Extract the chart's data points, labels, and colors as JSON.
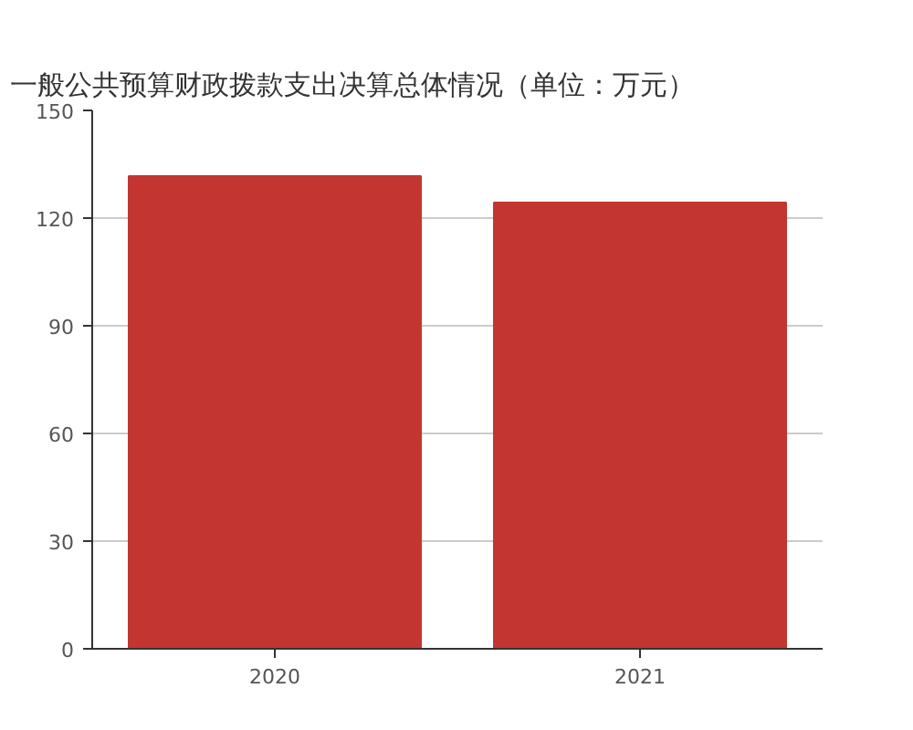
{
  "chart_data": {
    "type": "bar",
    "title": "一般公共预算财政拨款支出决算总体情况（单位：万元）",
    "categories": [
      "2020",
      "2021"
    ],
    "values": [
      131.7,
      124.3
    ],
    "color": "#c23531",
    "ylim": [
      0,
      150
    ],
    "yticks": [
      0,
      30,
      60,
      90,
      120,
      150
    ],
    "grid": "y"
  }
}
